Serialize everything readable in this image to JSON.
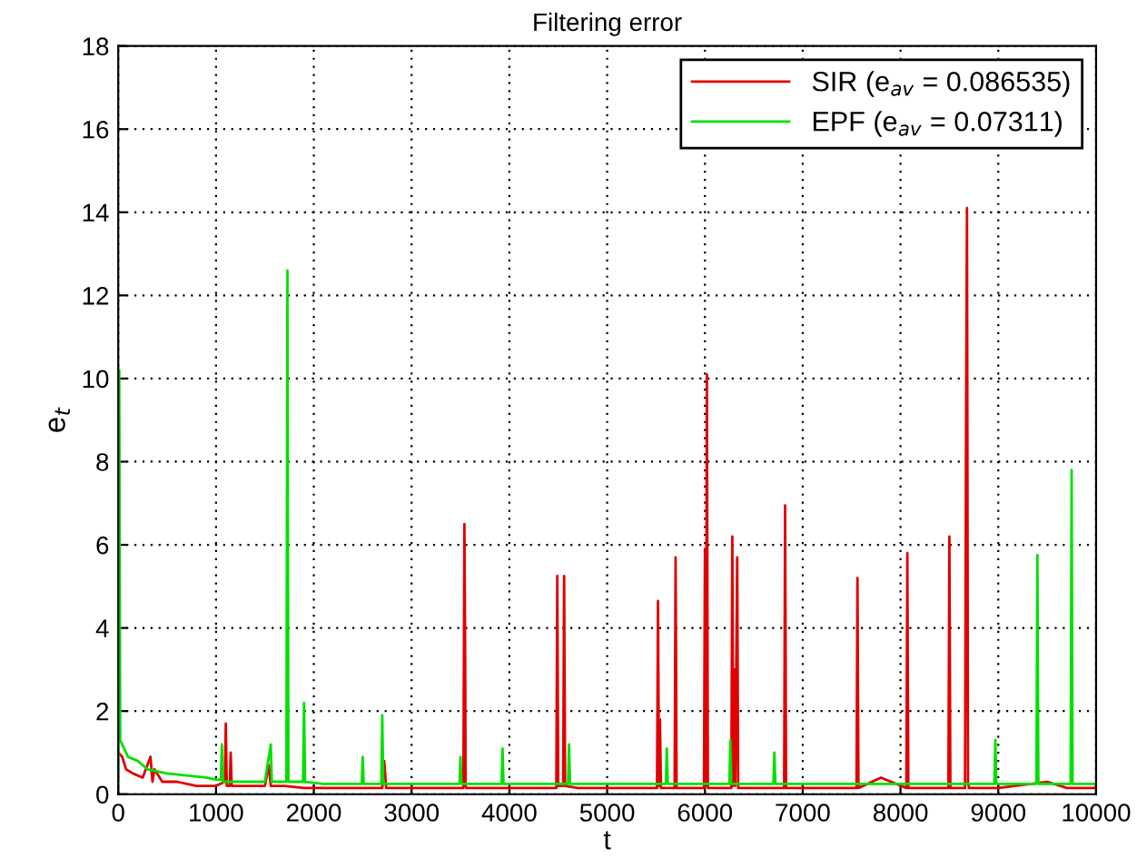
{
  "chart_data": {
    "type": "line",
    "title": "Filtering error",
    "xlabel": "t",
    "ylabel": "e$_{t}$",
    "xlim": [
      0,
      10000
    ],
    "ylim": [
      0,
      18
    ],
    "xticks": [
      0,
      1000,
      2000,
      3000,
      4000,
      5000,
      6000,
      7000,
      8000,
      9000,
      10000
    ],
    "yticks": [
      0,
      2,
      4,
      6,
      8,
      10,
      12,
      14,
      16,
      18
    ],
    "grid": true,
    "legend": "top right",
    "marker": "none",
    "line_style": "solid",
    "series": [
      {
        "name": "SIR (e$_{av}$ = 0.086535)",
        "color": "#e00000",
        "x": [
          0,
          40,
          80,
          150,
          250,
          330,
          350,
          370,
          450,
          600,
          800,
          1000,
          1090,
          1100,
          1110,
          1140,
          1150,
          1160,
          1300,
          1500,
          1540,
          1560,
          1700,
          1900,
          2000,
          2500,
          2700,
          2720,
          2740,
          3000,
          3300,
          3530,
          3540,
          3548,
          3552,
          3560,
          3800,
          4000,
          4200,
          4480,
          4490,
          4500,
          4550,
          4560,
          4570,
          4700,
          5000,
          5510,
          5520,
          5530,
          5540,
          5550,
          5690,
          5700,
          5710,
          5990,
          6000,
          6010,
          6020,
          6030,
          6270,
          6280,
          6290,
          6300,
          6310,
          6330,
          6340,
          6500,
          6810,
          6820,
          6830,
          7000,
          7200,
          7550,
          7560,
          7570,
          7800,
          8060,
          8070,
          8080,
          8300,
          8490,
          8500,
          8510,
          8660,
          8670,
          8680,
          8690,
          8700,
          8800,
          9000,
          9500,
          9700,
          10000
        ],
        "values": [
          1.0,
          0.9,
          0.6,
          0.5,
          0.4,
          0.9,
          0.3,
          0.6,
          0.3,
          0.3,
          0.2,
          0.2,
          0.3,
          1.7,
          0.2,
          0.2,
          1.0,
          0.2,
          0.2,
          0.2,
          0.7,
          0.2,
          0.2,
          0.15,
          0.15,
          0.15,
          0.15,
          0.8,
          0.15,
          0.15,
          0.15,
          0.15,
          6.5,
          3.3,
          0.2,
          0.15,
          0.15,
          0.15,
          0.15,
          0.15,
          5.25,
          0.2,
          0.2,
          5.25,
          0.2,
          0.15,
          0.15,
          0.15,
          4.65,
          0.2,
          1.8,
          0.15,
          0.15,
          5.7,
          0.15,
          0.15,
          5.9,
          0.2,
          10.1,
          0.15,
          0.15,
          6.2,
          0.2,
          3.0,
          0.2,
          5.7,
          0.15,
          0.15,
          0.15,
          6.95,
          0.15,
          0.15,
          0.15,
          0.15,
          5.2,
          0.15,
          0.4,
          0.15,
          5.8,
          0.15,
          0.15,
          0.15,
          6.2,
          0.15,
          0.15,
          8.7,
          14.1,
          0.3,
          0.15,
          0.15,
          0.15,
          0.3,
          0.15,
          0.15
        ]
      },
      {
        "name": "EPF (e$_{av}$ = 0.07311)",
        "color": "#00e000",
        "x": [
          0,
          10,
          20,
          60,
          100,
          200,
          300,
          500,
          700,
          900,
          1000,
          1050,
          1060,
          1070,
          1200,
          1500,
          1560,
          1570,
          1580,
          1720,
          1730,
          1740,
          1890,
          1900,
          1910,
          2100,
          2490,
          2500,
          2510,
          2690,
          2700,
          2710,
          3000,
          3490,
          3500,
          3510,
          3700,
          3920,
          3930,
          3940,
          4300,
          4600,
          4610,
          4620,
          5000,
          5200,
          5600,
          5610,
          5620,
          6000,
          6250,
          6260,
          6270,
          6500,
          6700,
          6710,
          6720,
          7000,
          7500,
          7800,
          8000,
          8500,
          8960,
          8970,
          8980,
          9200,
          9390,
          9400,
          9410,
          9740,
          9750,
          9760,
          10000
        ],
        "values": [
          0.3,
          10.2,
          1.3,
          1.1,
          0.9,
          0.8,
          0.6,
          0.5,
          0.45,
          0.4,
          0.35,
          0.35,
          1.2,
          0.3,
          0.3,
          0.3,
          1.2,
          0.3,
          0.3,
          0.3,
          12.6,
          0.3,
          0.3,
          2.2,
          0.3,
          0.25,
          0.25,
          0.9,
          0.25,
          0.25,
          1.9,
          0.25,
          0.25,
          0.25,
          0.9,
          0.25,
          0.25,
          0.25,
          1.1,
          0.25,
          0.25,
          0.25,
          1.2,
          0.25,
          0.25,
          0.25,
          0.25,
          1.1,
          0.25,
          0.25,
          0.25,
          1.3,
          0.25,
          0.25,
          0.25,
          1.0,
          0.25,
          0.25,
          0.25,
          0.25,
          0.25,
          0.25,
          0.25,
          1.3,
          0.25,
          0.25,
          0.25,
          5.75,
          0.25,
          0.25,
          7.8,
          0.25,
          0.25
        ]
      }
    ]
  }
}
